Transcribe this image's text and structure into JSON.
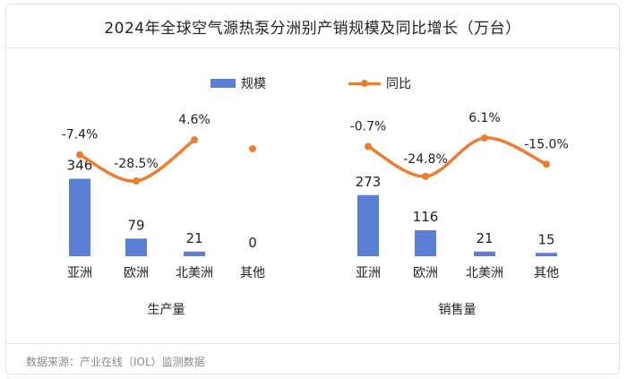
{
  "title": "2024年全球空气源热泵分洲别产销规模及同比增长（万台）",
  "legend": {
    "bar_label": "规模",
    "line_label": "同比"
  },
  "source": "数据来源：产业在线（IOL）监测数据",
  "colors": {
    "bar": "#5b7fd4",
    "line": "#ed7d31",
    "text": "#222222"
  },
  "chart_data": [
    {
      "type": "bar",
      "xlabel": "生产量",
      "categories": [
        "亚洲",
        "欧洲",
        "北美洲",
        "其他"
      ],
      "series": [
        {
          "name": "规模",
          "type": "bar",
          "values": [
            346,
            79,
            21,
            0
          ],
          "labels": [
            "346",
            "79",
            "21",
            "0"
          ]
        },
        {
          "name": "同比",
          "type": "line",
          "values": [
            -7.4,
            -28.5,
            4.6,
            null
          ],
          "labels": [
            "-7.4%",
            "-28.5%",
            "4.6%",
            ""
          ]
        }
      ]
    },
    {
      "type": "bar",
      "xlabel": "销售量",
      "categories": [
        "亚洲",
        "欧洲",
        "北美洲",
        "其他"
      ],
      "series": [
        {
          "name": "规模",
          "type": "bar",
          "values": [
            273,
            116,
            21,
            15
          ],
          "labels": [
            "273",
            "116",
            "21",
            "15"
          ]
        },
        {
          "name": "同比",
          "type": "line",
          "values": [
            -0.7,
            -24.8,
            6.1,
            -15.0
          ],
          "labels": [
            "-0.7%",
            "-24.8%",
            "6.1%",
            "-15.0%"
          ]
        }
      ]
    }
  ]
}
